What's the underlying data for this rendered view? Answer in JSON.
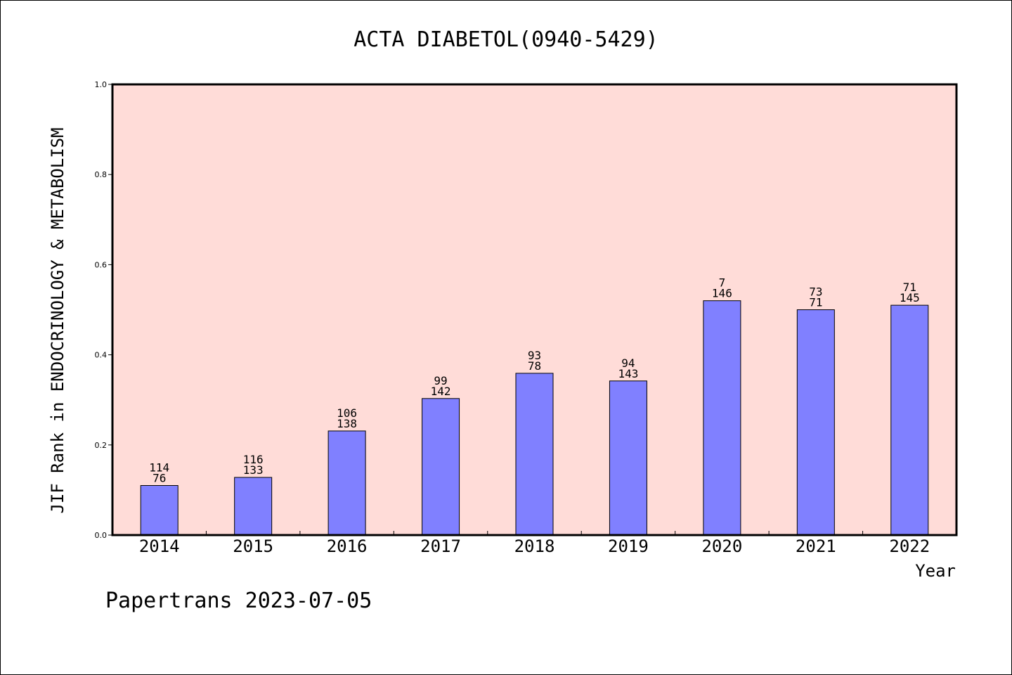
{
  "chart_data": {
    "type": "bar",
    "title": "ACTA DIABETOL(0940-5429)",
    "ylabel": "JIF Rank in ENDOCRINOLOGY & METABOLISM",
    "xlabel": "Year",
    "ylim": [
      0,
      1.0
    ],
    "yticks": [
      "0.0",
      "0.2",
      "0.4",
      "0.6",
      "0.8",
      "1.0"
    ],
    "categories": [
      "2014",
      "2015",
      "2016",
      "2017",
      "2018",
      "2019",
      "2020",
      "2021",
      "2022"
    ],
    "values": [
      0.11,
      0.128,
      0.231,
      0.303,
      0.359,
      0.342,
      0.52,
      0.5,
      0.51
    ],
    "labels_top": [
      "114",
      "116",
      "106",
      "99",
      "93",
      "94",
      "7",
      "73",
      "71"
    ],
    "labels_bottom": [
      "76",
      "133",
      "138",
      "142",
      "78",
      "143",
      "146",
      "71",
      "145"
    ],
    "bar_color": "#8080ff",
    "plot_background": "#ffdcd8",
    "grid": false,
    "legend": "none"
  },
  "footer": "Papertrans 2023-07-05"
}
